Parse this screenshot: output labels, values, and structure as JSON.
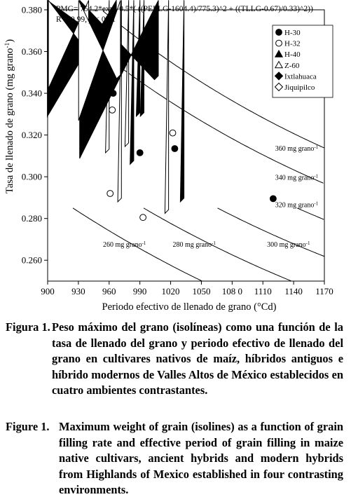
{
  "chart_data": {
    "type": "scatter",
    "equation": "PMG= 754.2*exp(-0.5*( ((PELLG-1604.4)/775.3)^2 + ((TLLG-0.67)/0.33)^2))",
    "r2_label": "R",
    "r2_sup": "2",
    "r2_value": "= 0.99, ",
    "p_italic": "p",
    "p_value": " < 0.01",
    "xlabel": "Periodo efectivo de llenado de grano (°Cd)",
    "ylabel_main": "Tasa de llenado de grano (mg grano",
    "ylabel_sup": "-1",
    "ylabel_end": ")",
    "xlim": [
      900,
      1170
    ],
    "ylim": [
      0.25,
      0.38
    ],
    "xticks": [
      900,
      930,
      960,
      990,
      1020,
      1050,
      1080,
      1110,
      1140,
      1170
    ],
    "xtick_labels": [
      "900",
      "930",
      "960",
      "990",
      "1020",
      "1050",
      "108 0",
      "1110",
      "1140",
      "1170"
    ],
    "yticks": [
      0.26,
      0.28,
      0.3,
      0.32,
      0.34,
      0.36,
      0.38
    ],
    "ytick_labels": [
      "0.260",
      "0.280",
      "0.300",
      "0.320",
      "0.340",
      "0.360",
      "0.380"
    ],
    "legend_position": "top-right",
    "series": [
      {
        "name": "H-30",
        "marker": "circle-filled",
        "points": [
          [
            964,
            0.34
          ],
          [
            990,
            0.3115
          ],
          [
            1024,
            0.3135
          ],
          [
            1120,
            0.2895
          ]
        ]
      },
      {
        "name": "H-32",
        "marker": "circle-open",
        "points": [
          [
            963,
            0.332
          ],
          [
            1022,
            0.321
          ],
          [
            961,
            0.292
          ],
          [
            993,
            0.2805
          ]
        ]
      },
      {
        "name": "H-40",
        "marker": "triangle-filled",
        "points": [
          [
            990,
            0.329
          ],
          [
            994,
            0.329
          ],
          [
            984,
            0.306
          ],
          [
            1033,
            0.288
          ]
        ]
      },
      {
        "name": "Z-60",
        "marker": "triangle-open",
        "points": [
          [
            960,
            0.3115
          ],
          [
            979,
            0.3145
          ],
          [
            972,
            0.288
          ],
          [
            1018,
            0.2825
          ]
        ]
      },
      {
        "name": "Ixtlahuaca",
        "marker": "diamond-filled",
        "points": [
          [
            967,
            0.362
          ],
          [
            1008,
            0.3465
          ]
        ]
      },
      {
        "name": "Jiquipilco",
        "marker": "diamond-open",
        "points": [
          [
            940,
            0.3615
          ],
          [
            971,
            0.347
          ]
        ]
      }
    ],
    "isolines": [
      {
        "value": 260,
        "unit": "mg grano",
        "unit_sup": "-1",
        "label": "260 mg grano"
      },
      {
        "value": 280,
        "unit": "mg grano",
        "unit_sup": "-1",
        "label": "280 mg grano"
      },
      {
        "value": 300,
        "unit": "mg grano",
        "unit_sup": "-1",
        "label": "300 mg grano"
      },
      {
        "value": 320,
        "unit": "mg grano",
        "unit_sup": "-1",
        "label": "320 mg grano"
      },
      {
        "value": 340,
        "unit": "mg grano",
        "unit_sup": "-1",
        "label": "340 mg grano"
      },
      {
        "value": 360,
        "unit": "mg grano",
        "unit_sup": "-1",
        "label": "360 mg grano"
      }
    ]
  },
  "captions": {
    "es_label": "Figura 1.",
    "es_text": "Peso máximo del grano (isolíneas) como una función de la tasa de llenado del grano y periodo efectivo de llenado del grano en cultivares nativos de maíz, híbridos antiguos e híbrido modernos de Valles Altos de México establecidos en cuatro ambientes contrastantes.",
    "en_label": "Figure 1.",
    "en_text": "Maximum weight of grain (isolines) as a function of grain filling rate and effective period of grain filling in maize native cultivars, ancient hybrids and modern hybrids from Highlands of Mexico established in four contrasting environments."
  }
}
